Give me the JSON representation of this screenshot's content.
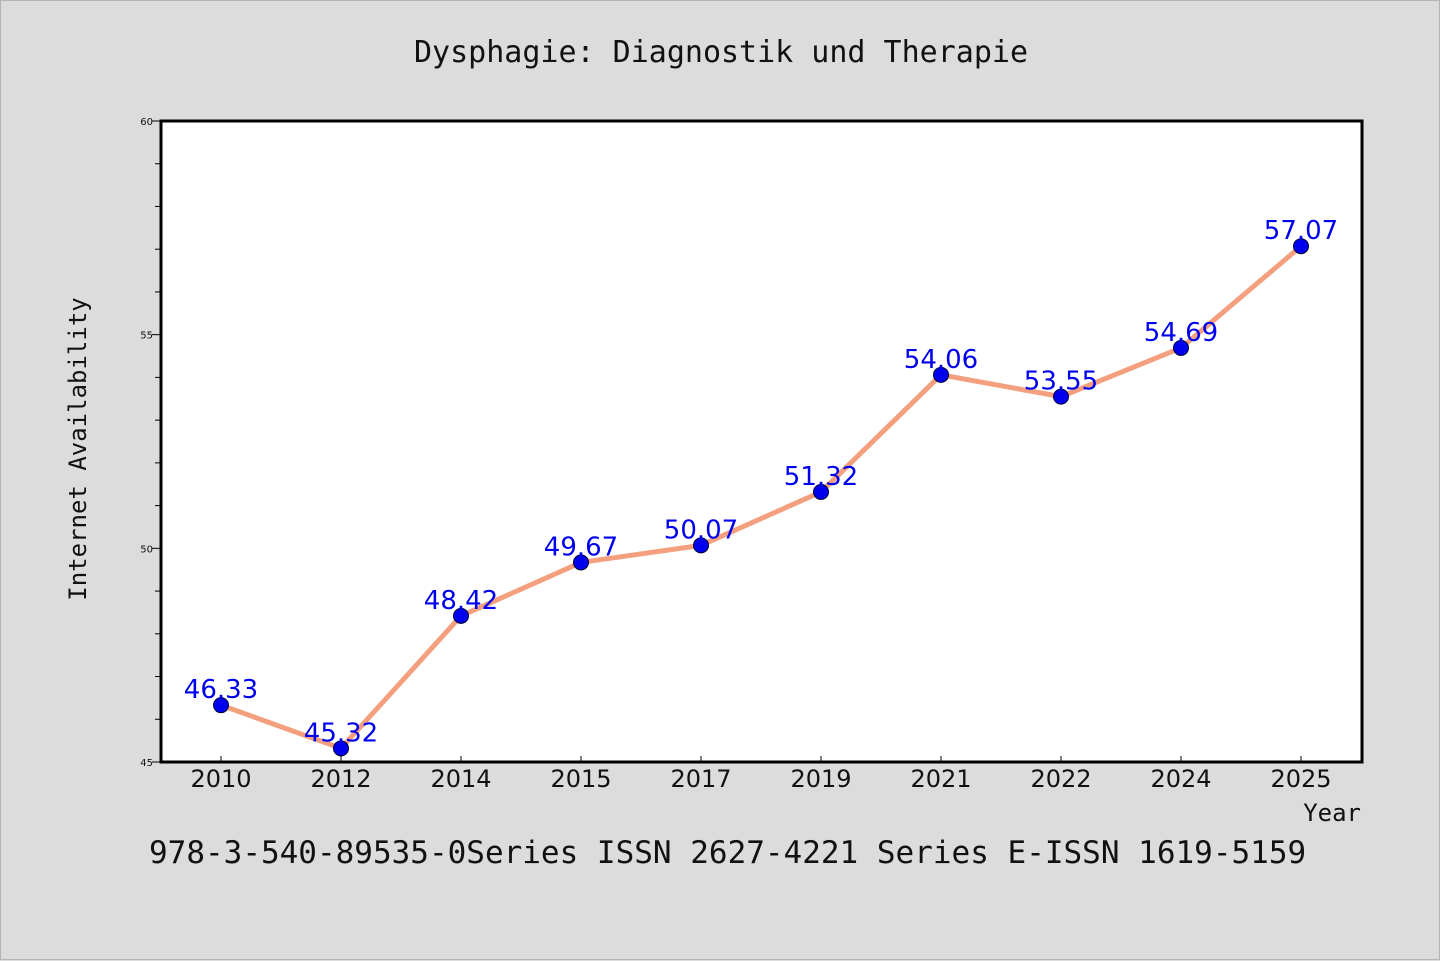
{
  "title": "Dysphagie: Diagnostik und Therapie",
  "footer": "978-3-540-89535-0Series ISSN 2627-4221 Series E-ISSN 1619-5159",
  "colors": {
    "background": "#dcdcdc",
    "plot_background": "#ffffff",
    "line": "#f4a07e",
    "marker": "#0000ee",
    "data_label": "#0000ee"
  },
  "chart_data": {
    "type": "line",
    "categories": [
      "2010",
      "2012",
      "2014",
      "2015",
      "2017",
      "2019",
      "2021",
      "2022",
      "2024",
      "2025"
    ],
    "values": [
      46.33,
      45.32,
      48.42,
      49.67,
      50.07,
      51.32,
      54.06,
      53.55,
      54.69,
      57.07
    ],
    "data_labels": [
      "46.33",
      "45.32",
      "48.42",
      "49.67",
      "50.07",
      "51.32",
      "54.06",
      "53.55",
      "54.69",
      "57.07"
    ],
    "xlabel": "Year",
    "ylabel": "Internet Availability",
    "ylim": [
      45,
      60
    ],
    "yticks": [
      "45",
      "50",
      "55",
      "60"
    ],
    "grid": false,
    "legend": false
  }
}
